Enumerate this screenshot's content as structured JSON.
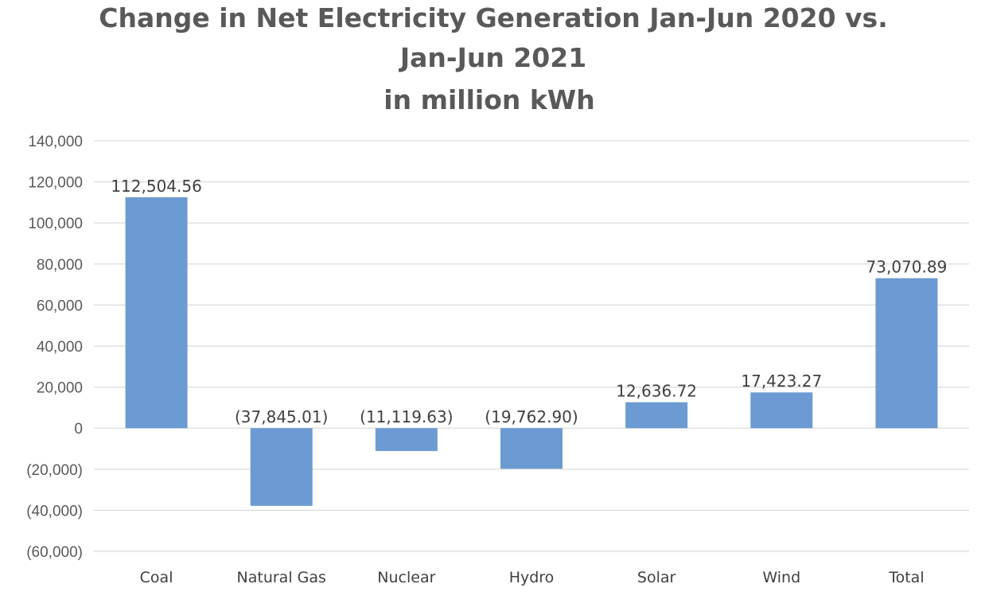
{
  "chart_data": {
    "type": "bar",
    "title_lines": [
      "Change in Net Electricity Generation Jan-Jun 2020 vs.",
      "Jan-Jun 2021",
      "in million kWh"
    ],
    "categories": [
      "Coal",
      "Natural Gas",
      "Nuclear",
      "Hydro",
      "Solar",
      "Wind",
      "Total"
    ],
    "values": [
      112504.56,
      -37845.01,
      -11119.63,
      -19762.9,
      12636.72,
      17423.27,
      73070.89
    ],
    "data_labels": [
      "112,504.56",
      "(37,845.01)",
      "(11,119.63)",
      "(19,762.90)",
      "12,636.72",
      "17,423.27",
      "73,070.89"
    ],
    "y_ticks": [
      140000,
      120000,
      100000,
      80000,
      60000,
      40000,
      20000,
      0,
      -20000,
      -40000,
      -60000
    ],
    "y_tick_labels": [
      "140,000",
      "120,000",
      "100,000",
      "80,000",
      "60,000",
      "40,000",
      "20,000",
      "0",
      "(20,000)",
      "(40,000)",
      "(60,000)"
    ],
    "ylim": [
      -60000,
      140000
    ],
    "grid": true,
    "legend": "none",
    "bar_color": "#6b9bd2"
  }
}
